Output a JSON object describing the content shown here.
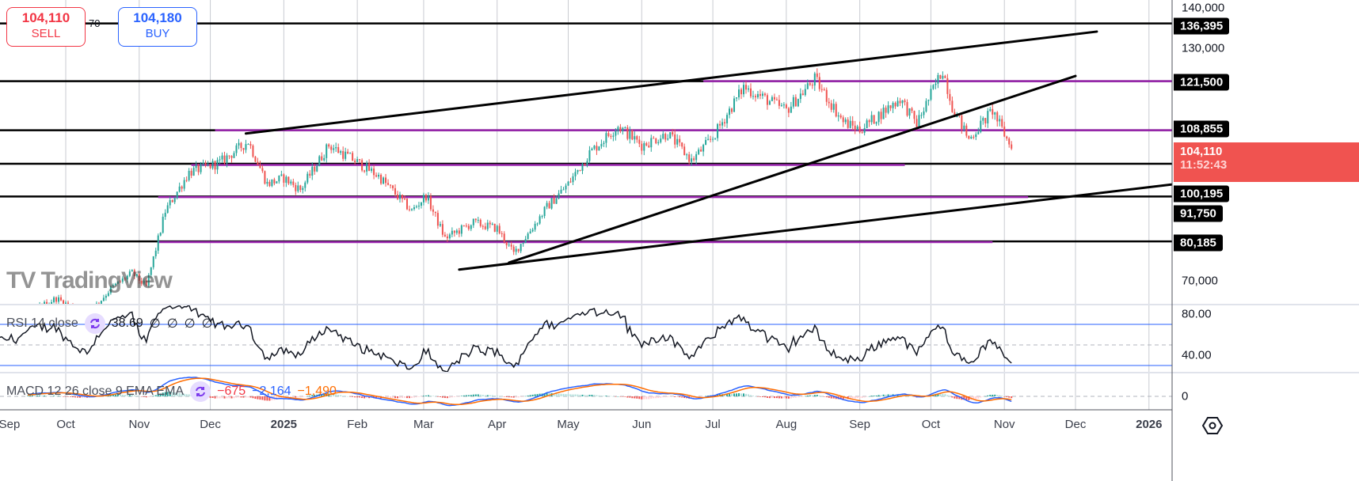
{
  "trade_widget": {
    "sell_price": "104,110",
    "sell_label": "SELL",
    "spread": "70",
    "buy_price": "104,180",
    "buy_label": "BUY"
  },
  "colors": {
    "bull": "#26a69a",
    "bear": "#ef5350",
    "level": "#000000",
    "zone": "#9c27b0",
    "rsi_line": "#131722",
    "rsi_band": "#2962ff",
    "macd": "#2962ff",
    "signal": "#ff6d00",
    "hist_up": "#26a69a",
    "hist_up_weak": "#b2dfdb",
    "hist_down": "#ef5350",
    "hist_down_weak": "#ffcdd2",
    "current_price": "#f05350"
  },
  "price_axis": {
    "ticks": [
      {
        "value": 140000,
        "label": "140,000"
      },
      {
        "value": 130000,
        "label": "130,000"
      },
      {
        "value": 70000,
        "label": "70,000"
      }
    ]
  },
  "levels": [
    {
      "value": 136395,
      "label": "136,395"
    },
    {
      "value": 121500,
      "label": "121,500"
    },
    {
      "value": 108855,
      "label": "108,855"
    },
    {
      "value": 100195,
      "label": "100,195"
    },
    {
      "value": 91750,
      "label": "91,750"
    },
    {
      "value": 80185,
      "label": "80,185"
    }
  ],
  "current_price": {
    "value": 104110,
    "label": "104,110",
    "countdown": "11:52:43"
  },
  "rsi": {
    "title": "RSI 14 close",
    "value": "38.69",
    "extras": [
      "∅",
      "∅",
      "∅",
      "∅"
    ],
    "upper": 70,
    "middle": 50,
    "lower": 30,
    "ticks": [
      {
        "value": 80,
        "label": "80.00"
      },
      {
        "value": 40,
        "label": "40.00"
      }
    ]
  },
  "macd": {
    "title": "MACD 12 26 close 9 EMA EMA",
    "histogram": "−675",
    "macd": "−2,164",
    "signal": "−1,490",
    "ticks": [
      {
        "value": 0,
        "label": "0"
      }
    ]
  },
  "time_axis": [
    {
      "date": "2024-09-01",
      "label": "Sep",
      "bold": false
    },
    {
      "date": "2024-10-01",
      "label": "Oct",
      "bold": false
    },
    {
      "date": "2024-11-01",
      "label": "Nov",
      "bold": false
    },
    {
      "date": "2024-12-01",
      "label": "Dec",
      "bold": false
    },
    {
      "date": "2025-01-01",
      "label": "2025",
      "bold": true
    },
    {
      "date": "2025-02-01",
      "label": "Feb",
      "bold": false
    },
    {
      "date": "2025-03-01",
      "label": "Mar",
      "bold": false
    },
    {
      "date": "2025-04-01",
      "label": "Apr",
      "bold": false
    },
    {
      "date": "2025-05-01",
      "label": "May",
      "bold": false
    },
    {
      "date": "2025-06-01",
      "label": "Jun",
      "bold": false
    },
    {
      "date": "2025-07-01",
      "label": "Jul",
      "bold": false
    },
    {
      "date": "2025-08-01",
      "label": "Aug",
      "bold": false
    },
    {
      "date": "2025-09-01",
      "label": "Sep",
      "bold": false
    },
    {
      "date": "2025-10-01",
      "label": "Oct",
      "bold": false
    },
    {
      "date": "2025-11-01",
      "label": "Nov",
      "bold": false
    },
    {
      "date": "2025-12-01",
      "label": "Dec",
      "bold": false
    },
    {
      "date": "2026-01-01",
      "label": "2026",
      "bold": true
    }
  ],
  "watermark": "TV TradingView",
  "chart_data": {
    "type": "candlestick",
    "interval": "1D",
    "ylim": [
      63000,
      143000
    ],
    "close_keypoints": [
      [
        "2024-08-20",
        58000
      ],
      [
        "2024-09-10",
        60000
      ],
      [
        "2024-09-27",
        65500
      ],
      [
        "2024-10-10",
        61000
      ],
      [
        "2024-10-20",
        68000
      ],
      [
        "2024-10-29",
        72000
      ],
      [
        "2024-11-04",
        68500
      ],
      [
        "2024-11-12",
        88000
      ],
      [
        "2024-11-22",
        98000
      ],
      [
        "2024-12-05",
        100500
      ],
      [
        "2024-12-17",
        106000
      ],
      [
        "2024-12-25",
        95000
      ],
      [
        "2025-01-01",
        96500
      ],
      [
        "2025-01-08",
        93500
      ],
      [
        "2025-01-20",
        105000
      ],
      [
        "2025-01-31",
        101000
      ],
      [
        "2025-02-10",
        97000
      ],
      [
        "2025-02-24",
        88000
      ],
      [
        "2025-03-02",
        92000
      ],
      [
        "2025-03-10",
        81000
      ],
      [
        "2025-03-22",
        85000
      ],
      [
        "2025-04-01",
        83500
      ],
      [
        "2025-04-08",
        77000
      ],
      [
        "2025-04-22",
        89000
      ],
      [
        "2025-05-01",
        95000
      ],
      [
        "2025-05-10",
        103000
      ],
      [
        "2025-05-22",
        110000
      ],
      [
        "2025-06-01",
        105000
      ],
      [
        "2025-06-12",
        108000
      ],
      [
        "2025-06-22",
        101000
      ],
      [
        "2025-07-01",
        107000
      ],
      [
        "2025-07-10",
        116000
      ],
      [
        "2025-07-14",
        120000
      ],
      [
        "2025-08-01",
        114000
      ],
      [
        "2025-08-13",
        122000
      ],
      [
        "2025-08-25",
        111000
      ],
      [
        "2025-09-01",
        109000
      ],
      [
        "2025-09-18",
        117000
      ],
      [
        "2025-09-25",
        110500
      ],
      [
        "2025-10-06",
        124500
      ],
      [
        "2025-10-10",
        115000
      ],
      [
        "2025-10-17",
        106500
      ],
      [
        "2025-10-27",
        114000
      ],
      [
        "2025-11-04",
        104110
      ]
    ],
    "trendlines": [
      {
        "from": [
          "2024-12-16",
          108000
        ],
        "to": [
          "2025-12-10",
          134300
        ]
      },
      {
        "from": [
          "2025-04-06",
          74700
        ],
        "to": [
          "2025-12-01",
          122850
        ]
      },
      {
        "from": [
          "2025-03-16",
          72900
        ],
        "to": [
          "2026-01-11",
          94900
        ]
      }
    ],
    "horizontal_zones": [
      {
        "value": 121500,
        "from": "2025-06-27",
        "to": "2026-01-20"
      },
      {
        "value": 108855,
        "from": "2024-12-03",
        "to": "2026-01-20"
      },
      {
        "value": 99900,
        "from": "2024-11-23",
        "to": "2025-09-20"
      },
      {
        "value": 91600,
        "from": "2024-11-09",
        "to": "2025-11-11"
      },
      {
        "value": 80000,
        "from": "2024-11-09",
        "to": "2025-10-27"
      }
    ]
  }
}
